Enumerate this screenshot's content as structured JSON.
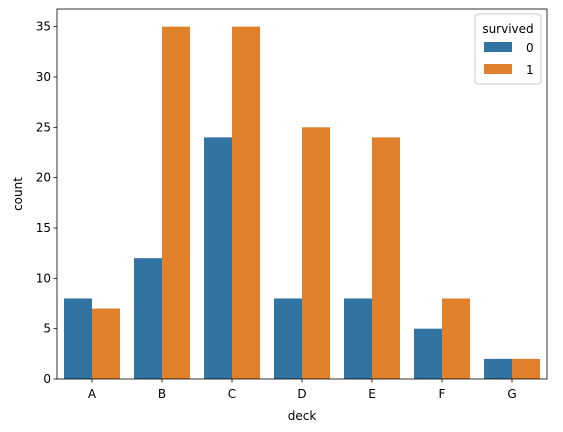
{
  "chart_data": {
    "type": "bar",
    "categories": [
      "A",
      "B",
      "C",
      "D",
      "E",
      "F",
      "G"
    ],
    "series": [
      {
        "name": "0",
        "values": [
          8,
          12,
          24,
          8,
          8,
          5,
          2
        ],
        "color": "#3274a1"
      },
      {
        "name": "1",
        "values": [
          7,
          35,
          35,
          25,
          24,
          8,
          2
        ],
        "color": "#e1812c"
      }
    ],
    "xlabel": "deck",
    "ylabel": "count",
    "ylim": [
      0,
      36.75
    ],
    "yticks": [
      0,
      5,
      10,
      15,
      20,
      25,
      30,
      35
    ],
    "grid": false,
    "legend": {
      "title": "survived",
      "position": "top-right"
    }
  }
}
